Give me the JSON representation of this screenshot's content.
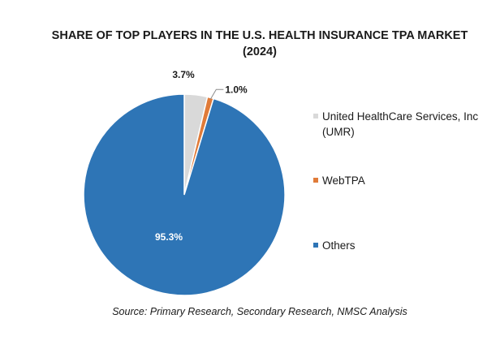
{
  "title_line1": "SHARE OF TOP PLAYERS IN THE U.S. HEALTH INSURANCE TPA MARKET",
  "title_line2": "(2024)",
  "source": "Source: Primary Research, Secondary Research, NMSC Analysis",
  "chart_data": {
    "type": "pie",
    "title": "SHARE OF TOP PLAYERS IN THE U.S. HEALTH INSURANCE TPA MARKET (2024)",
    "legend_position": "right",
    "categories": [
      "United HealthCare Services, Inc (UMR)",
      "WebTPA",
      "Others"
    ],
    "values": [
      3.7,
      1.0,
      95.3
    ],
    "labels": [
      "3.7%",
      "1.0%",
      "95.3%"
    ],
    "colors": [
      "#d9d9d9",
      "#e07b39",
      "#2e75b6"
    ],
    "unit": "%"
  }
}
